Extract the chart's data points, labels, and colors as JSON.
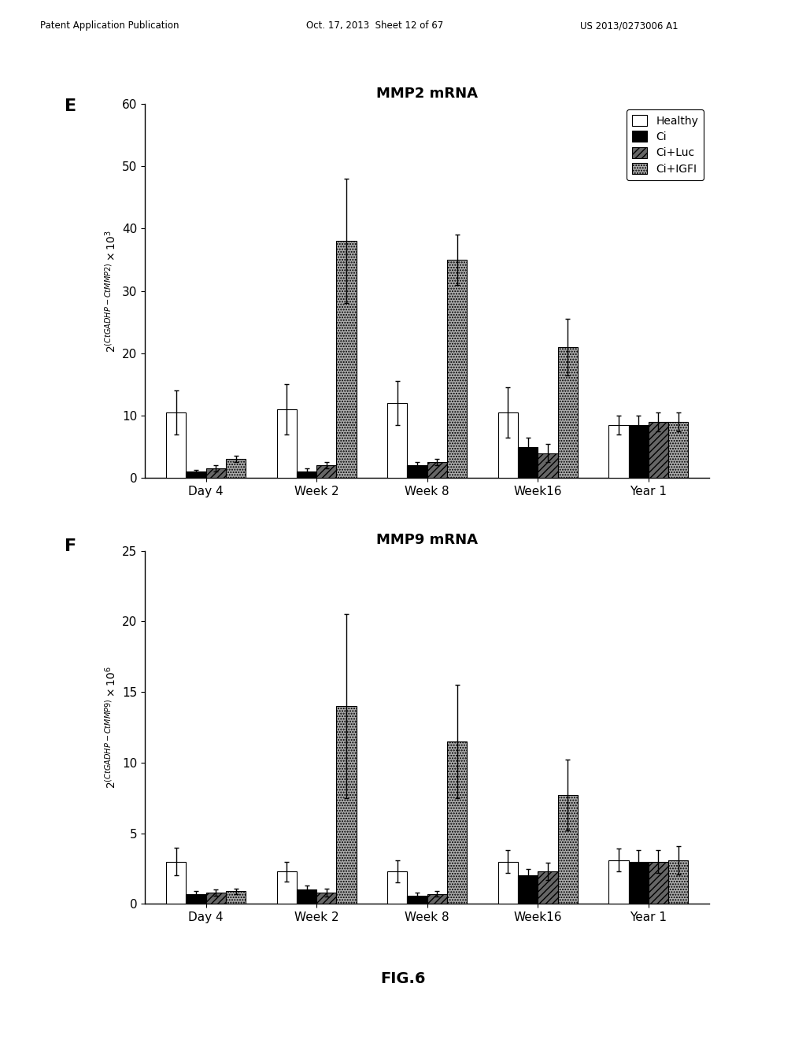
{
  "panel_E": {
    "title": "MMP2 mRNA",
    "ylim": [
      0,
      60
    ],
    "yticks": [
      0,
      10,
      20,
      30,
      40,
      50,
      60
    ],
    "categories": [
      "Day 4",
      "Week 2",
      "Week 8",
      "Week16",
      "Year 1"
    ],
    "series": {
      "Healthy": {
        "values": [
          10.5,
          11.0,
          12.0,
          10.5,
          8.5
        ],
        "errors": [
          3.5,
          4.0,
          3.5,
          4.0,
          1.5
        ],
        "color": "#ffffff",
        "edgecolor": "#000000",
        "hatch": ""
      },
      "Ci": {
        "values": [
          1.0,
          1.0,
          2.0,
          5.0,
          8.5
        ],
        "errors": [
          0.3,
          0.5,
          0.5,
          1.5,
          1.5
        ],
        "color": "#000000",
        "edgecolor": "#000000",
        "hatch": ""
      },
      "Ci+Luc": {
        "values": [
          1.5,
          2.0,
          2.5,
          4.0,
          9.0
        ],
        "errors": [
          0.5,
          0.5,
          0.5,
          1.5,
          1.5
        ],
        "color": "#666666",
        "edgecolor": "#000000",
        "hatch": "////"
      },
      "Ci+IGFI": {
        "values": [
          3.0,
          38.0,
          35.0,
          21.0,
          9.0
        ],
        "errors": [
          0.5,
          10.0,
          4.0,
          4.5,
          1.5
        ],
        "color": "#aaaaaa",
        "edgecolor": "#000000",
        "hatch": "....."
      }
    },
    "panel_label": "E"
  },
  "panel_F": {
    "title": "MMP9 mRNA",
    "ylim": [
      0,
      25
    ],
    "yticks": [
      0,
      5,
      10,
      15,
      20,
      25
    ],
    "categories": [
      "Day 4",
      "Week 2",
      "Week 8",
      "Week16",
      "Year 1"
    ],
    "series": {
      "Healthy": {
        "values": [
          3.0,
          2.3,
          2.3,
          3.0,
          3.1
        ],
        "errors": [
          1.0,
          0.7,
          0.8,
          0.8,
          0.8
        ],
        "color": "#ffffff",
        "edgecolor": "#000000",
        "hatch": ""
      },
      "Ci": {
        "values": [
          0.7,
          1.0,
          0.6,
          2.0,
          3.0
        ],
        "errors": [
          0.2,
          0.3,
          0.2,
          0.5,
          0.8
        ],
        "color": "#000000",
        "edgecolor": "#000000",
        "hatch": ""
      },
      "Ci+Luc": {
        "values": [
          0.8,
          0.8,
          0.7,
          2.3,
          3.0
        ],
        "errors": [
          0.2,
          0.3,
          0.2,
          0.6,
          0.8
        ],
        "color": "#666666",
        "edgecolor": "#000000",
        "hatch": "////"
      },
      "Ci+IGFI": {
        "values": [
          0.9,
          14.0,
          11.5,
          7.7,
          3.1
        ],
        "errors": [
          0.2,
          6.5,
          4.0,
          2.5,
          1.0
        ],
        "color": "#aaaaaa",
        "edgecolor": "#000000",
        "hatch": "....."
      }
    },
    "panel_label": "F"
  },
  "legend_labels": [
    "Healthy",
    "Ci",
    "Ci+Luc",
    "Ci+IGFI"
  ],
  "legend_colors": [
    "#ffffff",
    "#000000",
    "#666666",
    "#aaaaaa"
  ],
  "legend_hatches": [
    "",
    "",
    "////",
    "....."
  ],
  "figure_label": "FIG.6",
  "header_left": "Patent Application Publication",
  "header_mid": "Oct. 17, 2013  Sheet 12 of 67",
  "header_right": "US 2013/0273006 A1",
  "background_color": "#ffffff",
  "bar_width": 0.18
}
